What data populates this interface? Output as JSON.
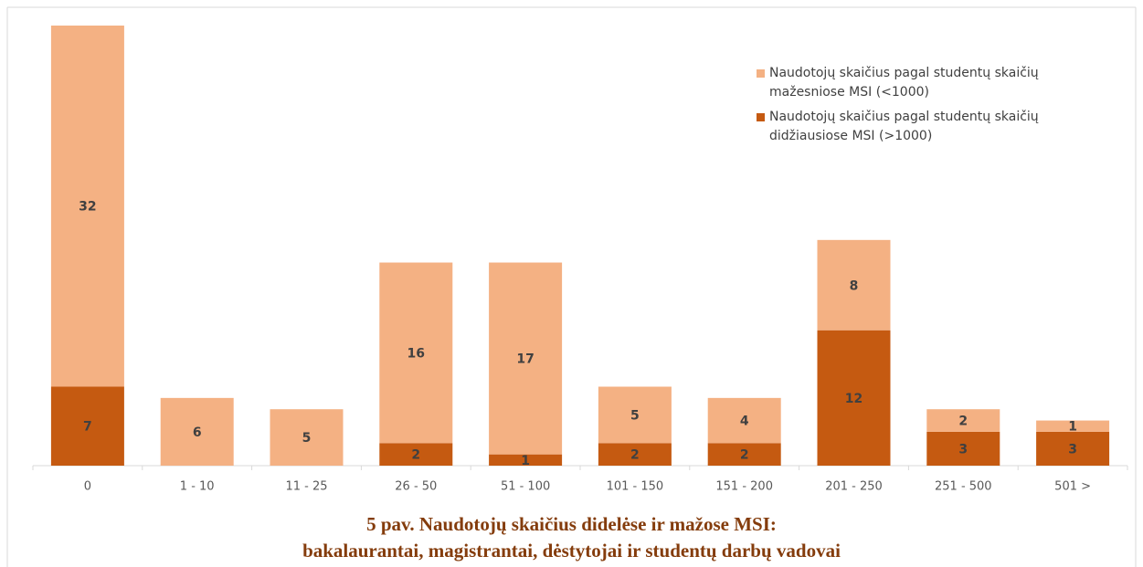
{
  "chart_data": {
    "type": "stacked_bar",
    "title": [
      "5 pav. Naudotojų skaičius didelėse ir mažose MSI:",
      "bakalaurantai, magistrantai, dėstytojai ir studentų darbų vadovai"
    ],
    "categories": [
      "0",
      "1 - 10",
      "11 - 25",
      "26 - 50",
      "51 - 100",
      "101 - 150",
      "151 - 200",
      "201 - 250",
      "251 - 500",
      "501 >"
    ],
    "series": [
      {
        "name": "Naudotojų skaičius pagal studentų skaičių didžiausiose MSI (>1000)",
        "color": "#c55a11",
        "values": [
          7,
          null,
          null,
          2,
          1,
          2,
          2,
          12,
          3,
          3
        ]
      },
      {
        "name": "Naudotojų skaičius pagal studentų skaičių mažesniose MSI (<1000)",
        "color": "#f4b183",
        "values": [
          32,
          6,
          5,
          16,
          17,
          5,
          4,
          8,
          2,
          1
        ]
      }
    ],
    "legend": "top-right"
  }
}
